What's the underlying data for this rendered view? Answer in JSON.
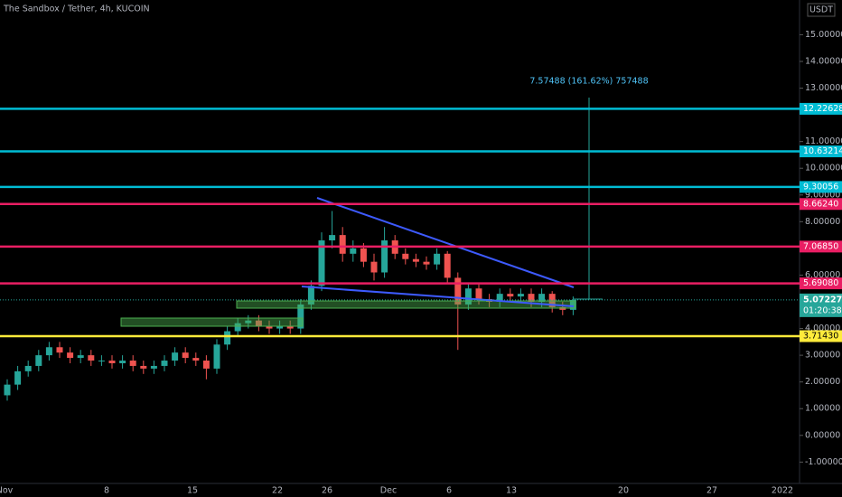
{
  "chart_data": {
    "type": "candlestick",
    "title": "The Sandbox / Tether, 4h, KUCOIN",
    "currency": "USDT",
    "annotation": "7.57488 (161.62%) 757488",
    "up_color": "#26a69a",
    "down_color": "#ef5350",
    "x_labels": [
      "Nov",
      "8",
      "15",
      "22",
      "26",
      "Dec",
      "6",
      "13",
      "20",
      "27",
      "2022"
    ],
    "open": [
      1.5,
      1.9,
      2.4,
      2.6,
      3.0,
      3.3,
      3.1,
      2.9,
      3.0,
      2.8,
      2.8,
      2.7,
      2.8,
      2.6,
      2.5,
      2.6,
      2.8,
      3.1,
      2.9,
      2.8,
      2.5,
      3.4,
      3.9,
      4.2,
      4.3,
      4.1,
      4.0,
      4.1,
      4.0,
      4.9,
      5.6,
      7.3,
      7.5,
      6.8,
      7.0,
      6.5,
      6.1,
      7.3,
      6.8,
      6.6,
      6.5,
      6.4,
      6.8,
      5.9,
      4.9,
      5.5,
      5.1,
      5.0,
      5.3,
      5.2,
      5.3,
      5.0,
      5.3,
      4.8,
      4.7
    ],
    "high": [
      2.1,
      2.6,
      2.8,
      3.2,
      3.5,
      3.5,
      3.3,
      3.2,
      3.2,
      3.0,
      3.0,
      3.0,
      3.0,
      2.8,
      2.8,
      3.0,
      3.3,
      3.3,
      3.1,
      3.0,
      3.6,
      4.1,
      4.4,
      4.5,
      4.5,
      4.3,
      4.3,
      4.3,
      5.1,
      5.8,
      7.6,
      8.4,
      7.8,
      7.3,
      7.2,
      6.8,
      7.8,
      7.5,
      7.0,
      6.8,
      6.7,
      7.0,
      6.9,
      6.1,
      5.7,
      5.7,
      5.3,
      5.5,
      5.5,
      5.5,
      5.5,
      5.5,
      5.4,
      5.0,
      5.2
    ],
    "low": [
      1.3,
      1.7,
      2.2,
      2.4,
      2.8,
      2.9,
      2.7,
      2.7,
      2.6,
      2.6,
      2.5,
      2.5,
      2.4,
      2.3,
      2.3,
      2.4,
      2.6,
      2.7,
      2.6,
      2.1,
      2.3,
      3.2,
      3.7,
      4.0,
      3.9,
      3.8,
      3.8,
      3.8,
      3.8,
      4.7,
      5.4,
      7.0,
      6.5,
      6.5,
      6.3,
      5.8,
      5.9,
      6.6,
      6.4,
      6.3,
      6.2,
      6.2,
      5.7,
      3.2,
      4.7,
      4.9,
      4.8,
      4.8,
      5.0,
      5.0,
      4.8,
      4.8,
      4.6,
      4.5,
      4.5
    ],
    "close": [
      1.9,
      2.4,
      2.6,
      3.0,
      3.3,
      3.1,
      2.9,
      3.0,
      2.8,
      2.8,
      2.7,
      2.8,
      2.6,
      2.5,
      2.6,
      2.8,
      3.1,
      2.9,
      2.8,
      2.5,
      3.4,
      3.9,
      4.2,
      4.3,
      4.1,
      4.0,
      4.1,
      4.0,
      4.9,
      5.6,
      7.3,
      7.5,
      6.8,
      7.0,
      6.5,
      6.1,
      7.3,
      6.8,
      6.6,
      6.5,
      6.4,
      6.8,
      5.9,
      4.9,
      5.5,
      5.1,
      5.0,
      5.3,
      5.2,
      5.3,
      5.0,
      5.3,
      4.8,
      4.7,
      5.07
    ],
    "ylim": [
      -1.8,
      16.3
    ],
    "yticks": [
      {
        "value": 15,
        "label": "15.00000"
      },
      {
        "value": 14,
        "label": "14.00000"
      },
      {
        "value": 13,
        "label": "13.00000"
      },
      {
        "value": 11,
        "label": "11.00000"
      },
      {
        "value": 10,
        "label": "10.00000"
      },
      {
        "value": 9,
        "label": "9.00000"
      },
      {
        "value": 8,
        "label": "8.00000"
      },
      {
        "value": 6,
        "label": "6.00000"
      },
      {
        "value": 4,
        "label": "4.00000"
      },
      {
        "value": 3,
        "label": "3.00000"
      },
      {
        "value": 2,
        "label": "2.00000"
      },
      {
        "value": 1,
        "label": "1.00000"
      },
      {
        "value": 0,
        "label": "0.00000"
      },
      {
        "value": -1,
        "label": "-1.00000"
      }
    ],
    "levels": [
      {
        "value": 12.22628,
        "label": "12.22628",
        "color": "#00bcd4"
      },
      {
        "value": 10.63214,
        "label": "10.63214",
        "color": "#00bcd4"
      },
      {
        "value": 9.30056,
        "label": "9.30056",
        "color": "#00bcd4"
      },
      {
        "value": 8.6624,
        "label": "8.66240",
        "color": "#e91e63"
      },
      {
        "value": 7.0685,
        "label": "7.06850",
        "color": "#e91e63"
      },
      {
        "value": 5.6908,
        "label": "5.69080",
        "color": "#e91e63"
      },
      {
        "value": 3.7143,
        "label": "3.71430",
        "color": "#ffeb3b"
      }
    ],
    "last_price": {
      "value": 5.07227,
      "label": "5.07227",
      "countdown": "01:20:38",
      "color": "#26a69a"
    }
  }
}
